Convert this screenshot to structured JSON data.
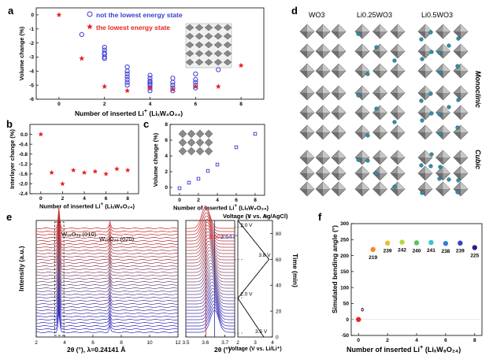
{
  "panels": {
    "a": {
      "label": "a",
      "xlabel": "Number of inserted Li",
      "xlabel_formula": "(LiₓW₈O₂₄)",
      "ylabel": "Volume change (%)",
      "legend": [
        "not the lowest energy state",
        "the lowest energy state"
      ]
    },
    "b": {
      "label": "b",
      "xlabel": "Number of inserted Li",
      "xlabel_formula": "(LiₓW₈O₂₄)",
      "ylabel": "Interlayer change (%)"
    },
    "c": {
      "label": "c",
      "xlabel": "Number of inserted Li",
      "xlabel_formula": "(LiₓW₈O₂₄)",
      "ylabel": "Volume change (%)"
    },
    "d": {
      "label": "d",
      "columns": [
        "WO3",
        "Li0.25WO3",
        "Li0.5WO3"
      ],
      "rows": [
        "Monoclinic",
        "Cubic"
      ]
    },
    "e": {
      "label": "e",
      "xlabel_left": "2θ (°), λ=0.24141 Å",
      "xlabel_mid": "2θ (°)",
      "ylabel": "Intensity (a.u.)",
      "peak1": "W₁₈O₄₉ (010)",
      "peak2": "W₁₈O₄₉ (020)",
      "pos1": "3.602°",
      "pos2": "3.647°",
      "voltage_top": "Voltage (V vs. Ag/AgCl)",
      "voltage_bottom": "Voltage (V vs. Li/Li⁺)",
      "time_label": "Time (min)",
      "v_labels": [
        "2.0 V",
        "3.8 V",
        "2.0 V",
        "3.5 V"
      ]
    },
    "f": {
      "label": "f",
      "xlabel": "Number of inserted Li",
      "xlabel_formula": "(LiₓW₈O₂₄)",
      "ylabel": "Simulated bending angle (°)"
    }
  },
  "chart_data": [
    {
      "panel": "a",
      "type": "scatter",
      "xlim": [
        -1,
        9
      ],
      "ylim": [
        -6,
        0.5
      ],
      "x_ticks": [
        0,
        2,
        4,
        6,
        8
      ],
      "y_ticks": [
        0,
        -1,
        -2,
        -3,
        -4,
        -5,
        -6
      ],
      "series": [
        {
          "name": "the lowest energy state",
          "x": [
            0,
            1,
            2,
            3,
            4,
            5,
            6,
            7,
            8
          ],
          "y": [
            0,
            -3.1,
            -5.1,
            -5.4,
            -5.2,
            -5.3,
            -5.1,
            -5.1,
            -3.6
          ]
        },
        {
          "name": "not the lowest energy state",
          "x": [
            1,
            2,
            2,
            2,
            2,
            2,
            2,
            3,
            3,
            3,
            3,
            3,
            3,
            3,
            4,
            4,
            4,
            4,
            4,
            4,
            4,
            4,
            5,
            5,
            5,
            5,
            5,
            6,
            6,
            6,
            6,
            6,
            7
          ],
          "y": [
            -1.4,
            -2.3,
            -2.5,
            -2.7,
            -2.8,
            -3.0,
            -3.1,
            -3.7,
            -4.0,
            -4.2,
            -4.4,
            -4.6,
            -4.8,
            -5.0,
            -4.3,
            -4.5,
            -4.7,
            -4.8,
            -4.9,
            -5.0,
            -5.2,
            -5.4,
            -4.5,
            -4.8,
            -5.0,
            -5.2,
            -5.4,
            -4.2,
            -4.6,
            -4.8,
            -5.0,
            -5.2,
            -3.9
          ]
        }
      ]
    },
    {
      "panel": "b",
      "type": "scatter",
      "xlim": [
        -1,
        9
      ],
      "ylim": [
        -2.4,
        0.4
      ],
      "x_ticks": [
        0,
        2,
        4,
        6,
        8
      ],
      "y_ticks": [
        0.0,
        -0.4,
        -0.8,
        -1.2,
        -1.6,
        -2.0,
        -2.4
      ],
      "series": [
        {
          "name": "",
          "x": [
            0,
            1,
            2,
            3,
            4,
            5,
            6,
            7,
            8
          ],
          "y": [
            0.0,
            -1.55,
            -2.0,
            -1.45,
            -1.55,
            -1.5,
            -1.6,
            -1.4,
            -1.45
          ]
        }
      ]
    },
    {
      "panel": "c",
      "type": "scatter",
      "xlim": [
        -1,
        9
      ],
      "ylim": [
        -1,
        8
      ],
      "x_ticks": [
        0,
        2,
        4,
        6,
        8
      ],
      "y_ticks": [
        0,
        2,
        4,
        6,
        8
      ],
      "series": [
        {
          "name": "",
          "x": [
            0,
            1,
            2,
            3,
            4,
            6,
            8
          ],
          "y": [
            -0.1,
            0.6,
            1.1,
            2.1,
            2.9,
            5.1,
            6.8
          ]
        }
      ]
    },
    {
      "panel": "e",
      "type": "line",
      "xlim_left": [
        2,
        12
      ],
      "xlim_mid": [
        3.5,
        3.75
      ],
      "x_ticks_left": [
        2,
        4,
        6,
        8,
        10,
        12
      ],
      "x_ticks_mid": [
        3.5,
        3.6,
        3.7
      ],
      "voltage_ticks_top": [
        -1,
        0
      ],
      "voltage_ticks_bottom": [
        2,
        3,
        4
      ],
      "time_ticks": [
        0,
        20,
        40,
        60,
        80
      ],
      "time_range": [
        0,
        90
      ]
    },
    {
      "panel": "f",
      "type": "scatter",
      "xlim": [
        -0.5,
        8.5
      ],
      "ylim": [
        -50,
        300
      ],
      "x_ticks": [
        0,
        2,
        4,
        6,
        8
      ],
      "y_ticks": [
        -50,
        0,
        50,
        100,
        150,
        200,
        250,
        300
      ],
      "series": [
        {
          "name": "",
          "x": [
            0,
            1,
            2,
            3,
            4,
            5,
            6,
            7,
            8
          ],
          "y": [
            0,
            219,
            239,
            242,
            240,
            241,
            238,
            239,
            225
          ],
          "labels": [
            "0",
            "219",
            "239",
            "242",
            "240",
            "241",
            "238",
            "239",
            "225"
          ],
          "colors": [
            "#e8251e",
            "#f08a24",
            "#e8c02a",
            "#b9d63a",
            "#4ec85a",
            "#35c8c8",
            "#2d7fe0",
            "#3344c8",
            "#2a1e8a"
          ]
        }
      ]
    }
  ],
  "colors": {
    "red": "#e8251e",
    "blue": "#3b3bd6",
    "dark_blue": "#2c2c8a"
  }
}
